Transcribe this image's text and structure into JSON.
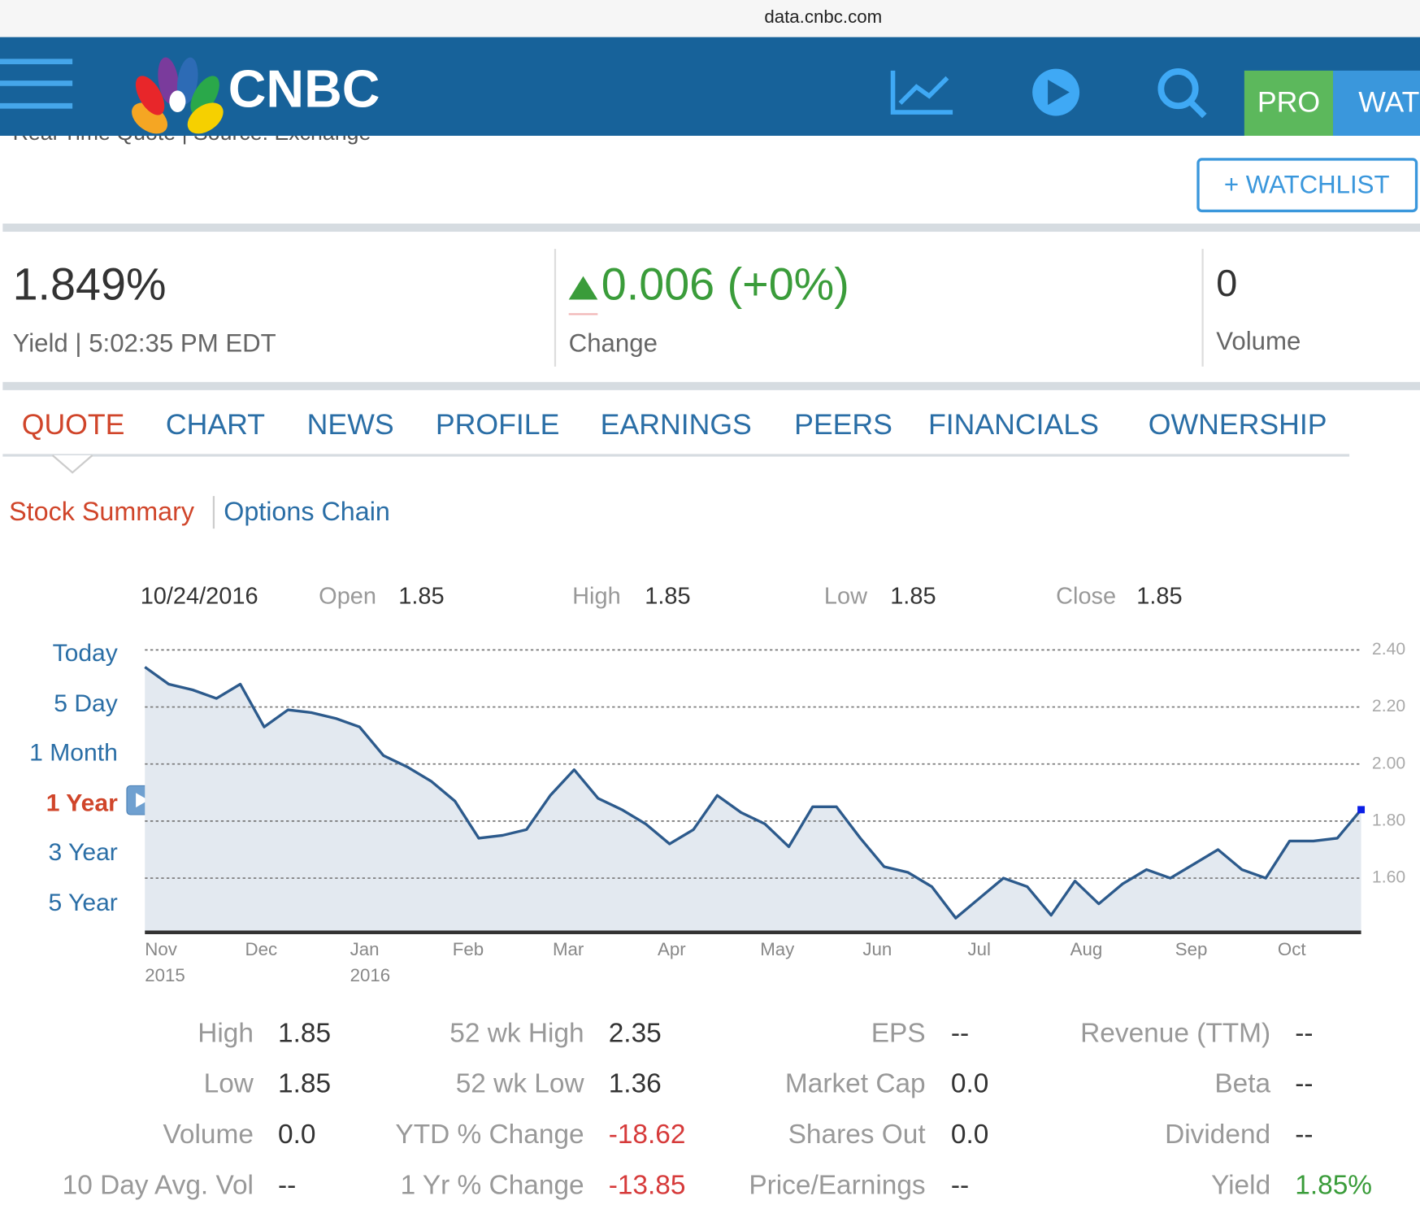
{
  "browser": {
    "url": "data.cnbc.com"
  },
  "header": {
    "logo": "CNBC",
    "pro": "PRO",
    "watch": "WAT",
    "source": "Real Time Quote | Source: Exchange"
  },
  "watchlist": "+ WATCHLIST",
  "quote": {
    "price": "1.849%",
    "price_label": "Yield | 5:02:35 PM EDT",
    "change": "0.006 (+0%)",
    "change_label": "Change",
    "volume": "0",
    "volume_label": "Volume"
  },
  "tabs": [
    "QUOTE",
    "CHART",
    "NEWS",
    "PROFILE",
    "EARNINGS",
    "PEERS",
    "FINANCIALS",
    "OWNERSHIP"
  ],
  "subtabs": [
    "Stock Summary",
    "Options Chain"
  ],
  "ohlc": {
    "date": "10/24/2016",
    "items": [
      {
        "label": "Open",
        "value": "1.85"
      },
      {
        "label": "High",
        "value": "1.85"
      },
      {
        "label": "Low",
        "value": "1.85"
      },
      {
        "label": "Close",
        "value": "1.85"
      }
    ]
  },
  "ranges": [
    "Today",
    "5 Day",
    "1 Month",
    "1 Year",
    "3 Year",
    "5 Year"
  ],
  "chart_data": {
    "type": "area",
    "categories": [
      null,
      null,
      null,
      null,
      null,
      null,
      null,
      null,
      null,
      null,
      null,
      null,
      null,
      null,
      null,
      null,
      null,
      null,
      null,
      null,
      null,
      null,
      null,
      null,
      null,
      null,
      null,
      null,
      null,
      null,
      null,
      null,
      null,
      null,
      null,
      null,
      null,
      null,
      null,
      null,
      null,
      null,
      null,
      null,
      null,
      null,
      null,
      null,
      null,
      null,
      null,
      null
    ],
    "series": [
      {
        "color": "#2c5a8c",
        "values": [
          2.34,
          2.28,
          2.26,
          2.23,
          2.28,
          2.13,
          2.19,
          2.18,
          2.16,
          2.13,
          2.03,
          1.99,
          1.94,
          1.87,
          1.74,
          1.75,
          1.77,
          1.89,
          1.98,
          1.88,
          1.84,
          1.79,
          1.72,
          1.77,
          1.89,
          1.83,
          1.79,
          1.71,
          1.85,
          1.85,
          1.74,
          1.64,
          1.62,
          1.57,
          1.46,
          1.53,
          1.6,
          1.57,
          1.47,
          1.59,
          1.51,
          1.58,
          1.63,
          1.6,
          1.65,
          1.7,
          1.63,
          1.6,
          1.73,
          1.73,
          1.74,
          1.84
        ]
      }
    ],
    "ylim": [
      1.41,
      2.4
    ],
    "yticks": [
      {
        "value": 1.6,
        "label": "1.60"
      },
      {
        "value": 1.8,
        "label": "1.80"
      },
      {
        "value": 2.0,
        "label": "2.00"
      },
      {
        "value": 2.2,
        "label": "2.20"
      },
      {
        "value": 2.4,
        "label": "2.40"
      }
    ],
    "xticks": [
      {
        "value": 0,
        "label": "Nov",
        "year": "2015"
      },
      {
        "value": 4.2,
        "label": "Dec"
      },
      {
        "value": 8.6,
        "label": "Jan",
        "year": "2016"
      },
      {
        "value": 12.9,
        "label": "Feb"
      },
      {
        "value": 17.1,
        "label": "Mar"
      },
      {
        "value": 21.5,
        "label": "Apr"
      },
      {
        "value": 25.8,
        "label": "May"
      },
      {
        "value": 30.1,
        "label": "Jun"
      },
      {
        "value": 34.5,
        "label": "Jul"
      },
      {
        "value": 38.8,
        "label": "Aug"
      },
      {
        "value": 43.2,
        "label": "Sep"
      },
      {
        "value": 47.5,
        "label": "Oct"
      }
    ],
    "grid": true
  },
  "stats": [
    [
      {
        "label": "High",
        "value": "1.85"
      },
      {
        "label": "Low",
        "value": "1.85"
      },
      {
        "label": "Volume",
        "value": "0.0"
      },
      {
        "label": "10 Day Avg. Vol",
        "value": "--"
      }
    ],
    [
      {
        "label": "52 wk High",
        "value": "2.35"
      },
      {
        "label": "52 wk Low",
        "value": "1.36"
      },
      {
        "label": "YTD % Change",
        "value": "-18.62",
        "tone": "negative"
      },
      {
        "label": "1 Yr % Change",
        "value": "-13.85",
        "tone": "negative"
      }
    ],
    [
      {
        "label": "EPS",
        "value": "--"
      },
      {
        "label": "Market Cap",
        "value": "0.0"
      },
      {
        "label": "Shares Out",
        "value": "0.0"
      },
      {
        "label": "Price/Earnings",
        "value": "--"
      }
    ],
    [
      {
        "label": "Revenue (TTM)",
        "value": "--"
      },
      {
        "label": "Beta",
        "value": "--"
      },
      {
        "label": "Dividend",
        "value": "--"
      },
      {
        "label": "Yield",
        "value": "1.85%",
        "tone": "positive"
      }
    ]
  ]
}
